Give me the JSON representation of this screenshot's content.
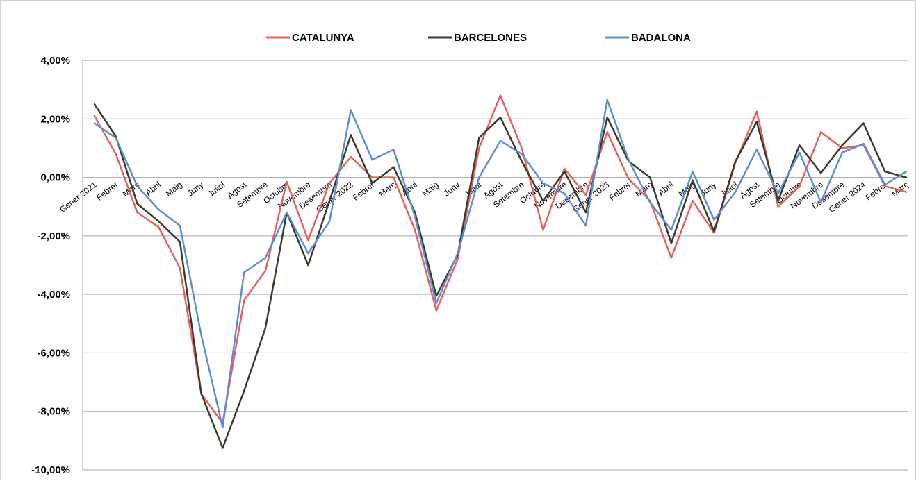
{
  "chart_data": {
    "type": "line",
    "title": "",
    "xlabel": "",
    "ylabel": "",
    "ylim": [
      -10,
      4
    ],
    "y_ticks": [
      4,
      2,
      0,
      -2,
      -4,
      -6,
      -8,
      -10
    ],
    "y_tick_labels": [
      "4,00%",
      "2,00%",
      "0,00%",
      "-2,00%",
      "-4,00%",
      "-6,00%",
      "-8,00%",
      "-10,00%"
    ],
    "grid": true,
    "legend_position": "top",
    "categories": [
      "Gener 2021",
      "Febrer",
      "Març",
      "Abril",
      "Maig",
      "Juny",
      "Juliol",
      "Agost",
      "Setembre",
      "Octubre",
      "Novembre",
      "Desembre",
      "Gener 2022",
      "Febrer",
      "Març",
      "Abril",
      "Maig",
      "Juny",
      "Juliol",
      "Agost",
      "Setembre",
      "Octubre",
      "Novembre",
      "Desembre",
      "Gener 2023",
      "Febrer",
      "Març",
      "Abril",
      "Maig",
      "Juny",
      "Juliol",
      "Agost",
      "Setembre",
      "Octubre",
      "Novembre",
      "Desembre",
      "Gener 2024",
      "Febrer",
      "Març"
    ],
    "series": [
      {
        "name": "CATALUNYA",
        "color": "#e8605e",
        "values": [
          2.1,
          0.8,
          -1.2,
          -1.7,
          -3.1,
          -7.4,
          -8.4,
          -4.2,
          -3.2,
          -0.15,
          -2.15,
          -0.2,
          0.7,
          0.0,
          0.0,
          -1.8,
          -4.55,
          -2.8,
          1.0,
          2.8,
          1.0,
          -1.8,
          0.3,
          -0.6,
          1.55,
          -0.05,
          -0.8,
          -2.75,
          -0.8,
          -1.9,
          0.5,
          2.25,
          -1.0,
          -0.3,
          1.55,
          1.0,
          1.1,
          -0.3,
          -0.5
        ]
      },
      {
        "name": "BARCELONES",
        "color": "#3a3a2a",
        "values": [
          2.5,
          1.4,
          -0.9,
          -1.5,
          -2.2,
          -7.4,
          -9.25,
          -7.3,
          -5.15,
          -1.2,
          -3.0,
          -0.8,
          1.45,
          -0.2,
          0.35,
          -1.2,
          -4.05,
          -2.65,
          1.35,
          2.05,
          0.55,
          -0.8,
          0.2,
          -1.2,
          2.05,
          0.55,
          0.0,
          -2.25,
          -0.1,
          -1.85,
          0.55,
          1.9,
          -0.8,
          1.1,
          0.15,
          1.1,
          1.85,
          0.2,
          0.0
        ]
      },
      {
        "name": "BADALONA",
        "color": "#5b8fcf",
        "values": [
          1.85,
          1.35,
          -0.3,
          -1.1,
          -1.65,
          -5.4,
          -8.55,
          -3.25,
          -2.75,
          -1.2,
          -2.6,
          -1.5,
          2.3,
          0.6,
          0.95,
          -1.35,
          -4.3,
          -2.6,
          0.0,
          1.25,
          0.8,
          -0.2,
          -0.55,
          -1.65,
          2.65,
          0.6,
          -0.85,
          -1.8,
          0.2,
          -1.45,
          -0.5,
          0.95,
          -0.55,
          0.85,
          -0.85,
          0.85,
          1.15,
          -0.25,
          0.2
        ]
      }
    ]
  }
}
